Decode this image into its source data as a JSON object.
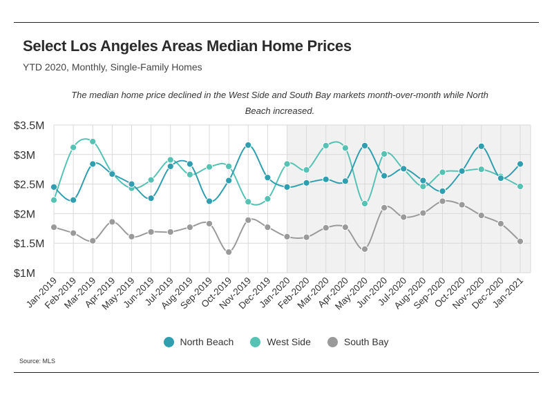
{
  "header": {
    "title": "Select Los Angeles Areas Median Home Prices",
    "subtitle": "YTD 2020, Monthly, Single-Family Homes",
    "annotation": "The median home price declined in the West Side and South Bay markets month-over-month while North Beach increased."
  },
  "source": "Source:  MLS",
  "colors": {
    "north_beach": "#2f9eae",
    "west_side": "#56c2b4",
    "south_bay": "#9a9a9a",
    "shade": "#f1f1f1",
    "grid": "#d9d9d9"
  },
  "chart_data": {
    "type": "line",
    "title": "Select Los Angeles Areas Median Home Prices",
    "xlabel": "",
    "ylabel": "",
    "ylim": [
      1,
      3.5
    ],
    "y_unit": "M",
    "yticks": [
      "$1M",
      "$1.5M",
      "$2M",
      "$2.5M",
      "$3M",
      "$3.5M"
    ],
    "grid": true,
    "legend_position": "bottom",
    "highlighted_range": [
      "Jan-2020",
      "Jan-2021"
    ],
    "categories": [
      "Jan-2019",
      "Feb-2019",
      "Mar-2019",
      "Apr-2019",
      "May-2019",
      "Jun-2019",
      "Jul-2019",
      "Aug-2019",
      "Sep-2019",
      "Oct-2019",
      "Nov-2019",
      "Dec-2019",
      "Jan-2020",
      "Feb-2020",
      "Mar-2020",
      "Apr-2020",
      "May-2020",
      "Jun-2020",
      "Jul-2020",
      "Aug-2020",
      "Sep-2020",
      "Oct-2020",
      "Nov-2020",
      "Dec-2020",
      "Jan-2021"
    ],
    "series": [
      {
        "name": "North Beach",
        "values": [
          2.45,
          2.23,
          2.84,
          2.67,
          2.5,
          2.26,
          2.8,
          2.84,
          2.21,
          2.56,
          3.16,
          2.61,
          2.45,
          2.52,
          2.58,
          2.55,
          3.15,
          2.64,
          2.76,
          2.56,
          2.38,
          2.72,
          3.14,
          2.6,
          2.84
        ]
      },
      {
        "name": "West Side",
        "values": [
          2.23,
          3.12,
          3.22,
          2.69,
          2.43,
          2.57,
          2.91,
          2.66,
          2.79,
          2.8,
          2.2,
          2.25,
          2.84,
          2.74,
          3.15,
          3.11,
          2.17,
          3.01,
          2.75,
          2.46,
          2.7,
          2.72,
          2.75,
          2.63,
          2.46
        ]
      },
      {
        "name": "South Bay",
        "values": [
          1.77,
          1.67,
          1.54,
          1.86,
          1.61,
          1.69,
          1.69,
          1.77,
          1.83,
          1.35,
          1.89,
          1.77,
          1.61,
          1.6,
          1.76,
          1.77,
          1.4,
          2.1,
          1.94,
          2.01,
          2.21,
          2.15,
          1.97,
          1.83,
          1.53
        ]
      }
    ]
  }
}
